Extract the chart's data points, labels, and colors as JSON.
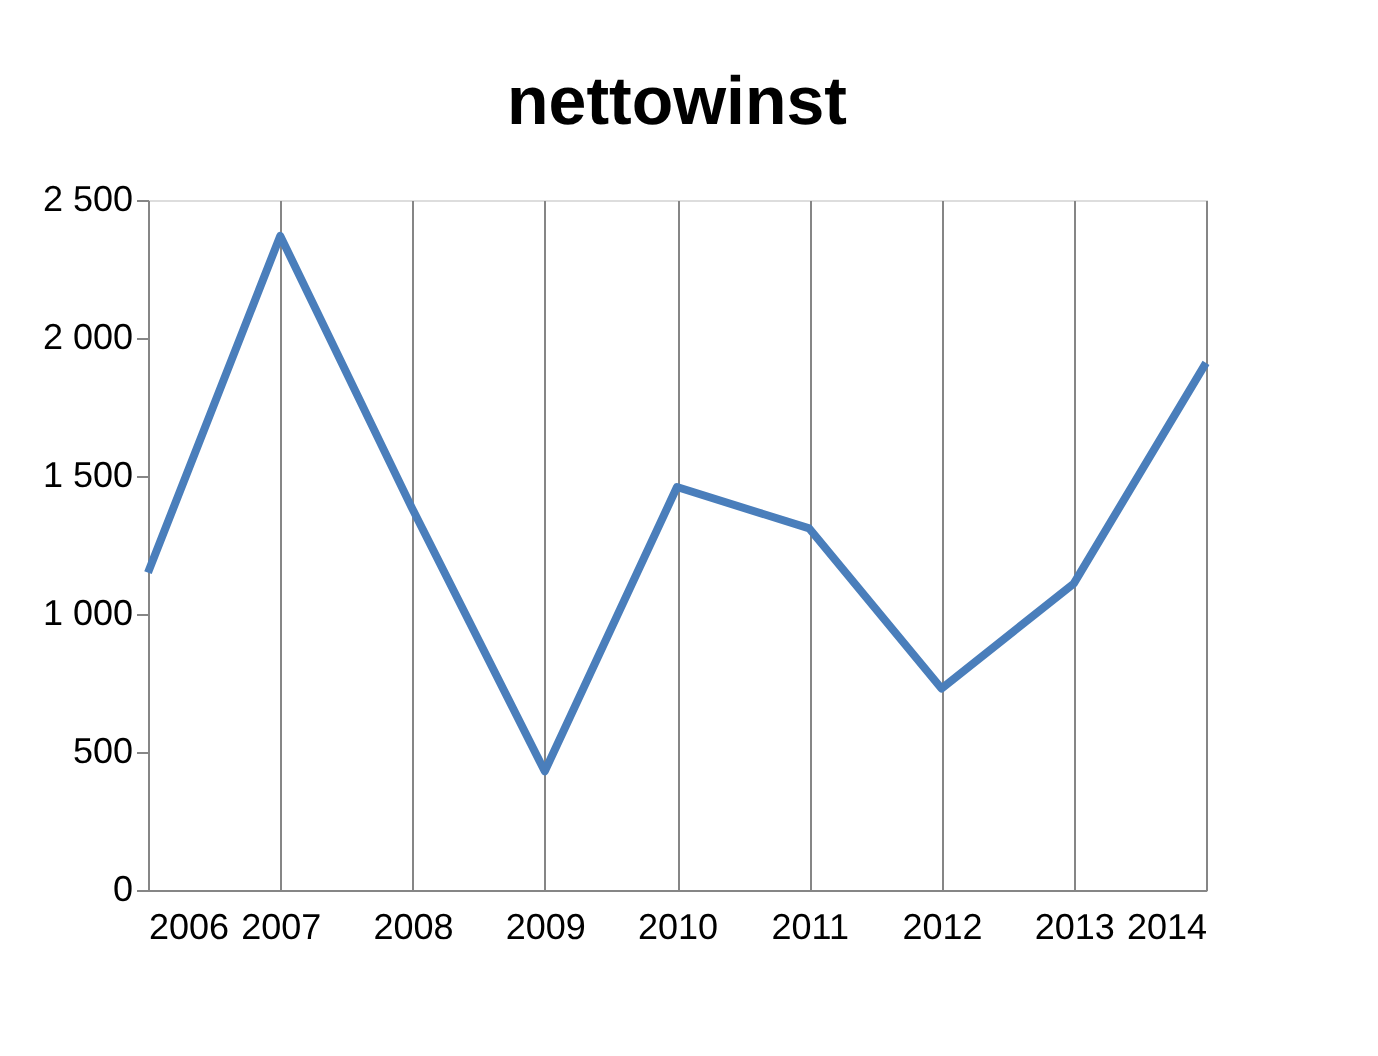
{
  "chart_data": {
    "type": "line",
    "title": "nettowinst",
    "categories": [
      "2006",
      "2007",
      "2008",
      "2009",
      "2010",
      "2011",
      "2012",
      "2013",
      "2014"
    ],
    "series": [
      {
        "color": "#4a7ebb",
        "values": [
          1150,
          2370,
          1380,
          430,
          1460,
          1310,
          730,
          1110,
          1910
        ]
      }
    ],
    "ylim": [
      0,
      2500
    ],
    "yticks": [
      0,
      500,
      {
        "value": 1000,
        "label": "1 000"
      },
      {
        "value": 1500,
        "label": "1 500"
      },
      {
        "value": 2000,
        "label": "2 000"
      },
      {
        "value": 2500,
        "label": "2 500"
      }
    ],
    "grid": "x",
    "marker": "none",
    "line_style": "solid"
  }
}
